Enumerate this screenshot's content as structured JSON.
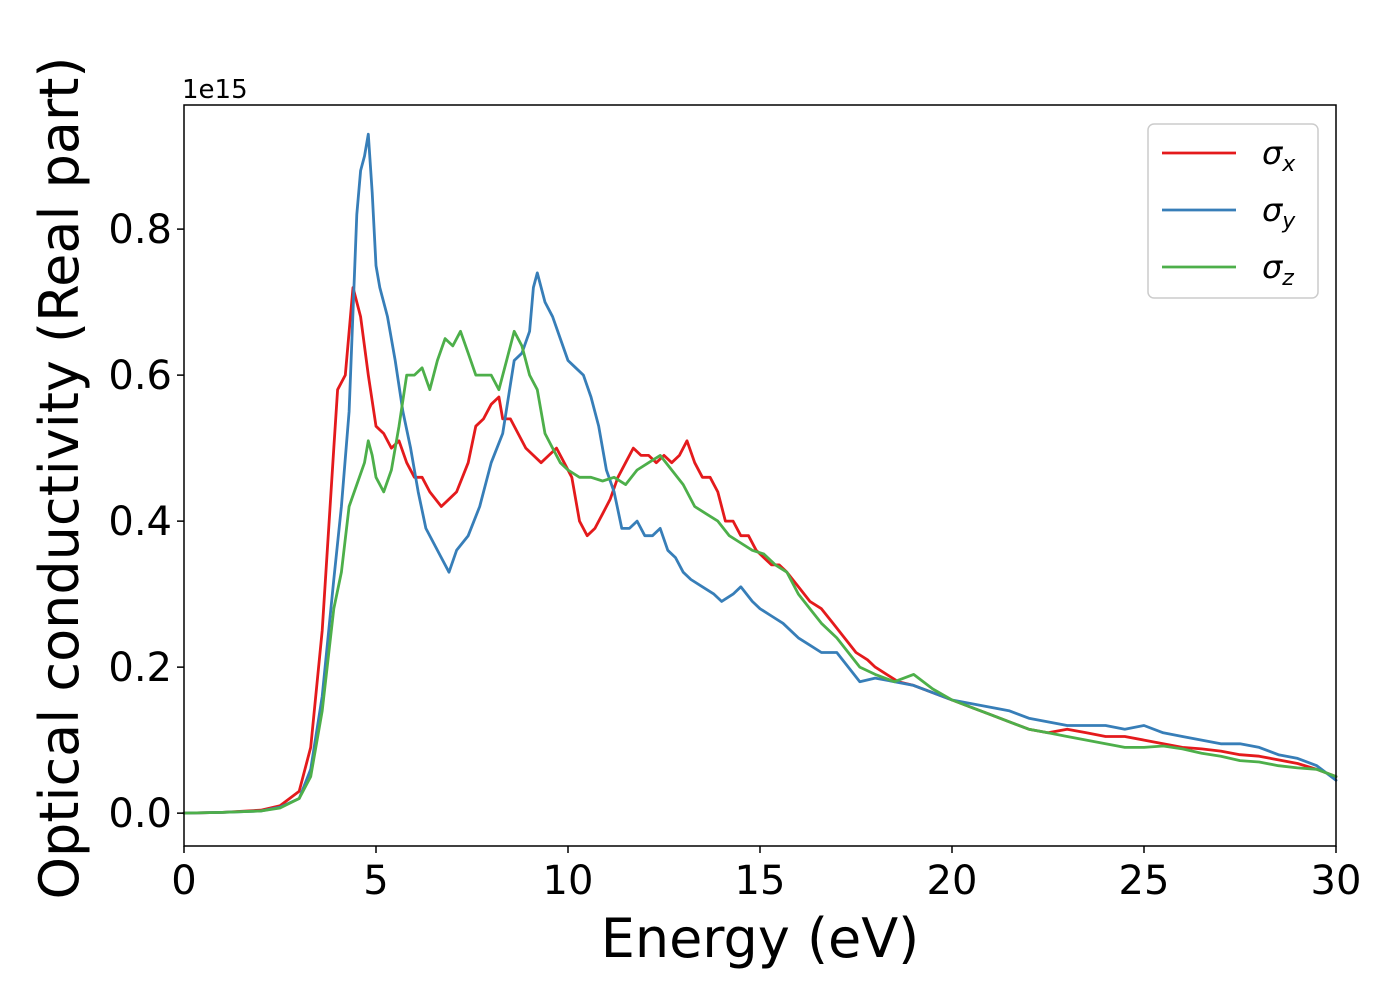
{
  "chart_data": {
    "type": "line",
    "title": "",
    "xlabel": "Energy (eV)",
    "ylabel": "Optical conductivity (Real part)",
    "y_offset_label": "1e15",
    "xlim": [
      0,
      30
    ],
    "ylim": [
      -0.045,
      0.97
    ],
    "x_ticks": [
      0,
      5,
      10,
      15,
      20,
      25,
      30
    ],
    "x_tick_labels": [
      "0",
      "5",
      "10",
      "15",
      "20",
      "25",
      "30"
    ],
    "y_ticks": [
      0.0,
      0.2,
      0.4,
      0.6,
      0.8
    ],
    "y_tick_labels": [
      "0.0",
      "0.2",
      "0.4",
      "0.6",
      "0.8"
    ],
    "grid": false,
    "legend_position": "top-right",
    "series": [
      {
        "name": "σx",
        "symbol": "σ",
        "subscript": "x",
        "color": "#e41a1c",
        "x": [
          0,
          1,
          2,
          2.5,
          3,
          3.3,
          3.6,
          3.9,
          4.0,
          4.2,
          4.4,
          4.5,
          4.6,
          4.8,
          5.0,
          5.2,
          5.4,
          5.6,
          5.8,
          6.0,
          6.2,
          6.4,
          6.7,
          6.9,
          7.1,
          7.4,
          7.6,
          7.8,
          8.0,
          8.2,
          8.3,
          8.5,
          8.7,
          8.9,
          9.1,
          9.3,
          9.5,
          9.7,
          9.9,
          10.1,
          10.3,
          10.5,
          10.7,
          10.9,
          11.1,
          11.3,
          11.5,
          11.7,
          11.9,
          12.1,
          12.3,
          12.5,
          12.7,
          12.9,
          13.1,
          13.3,
          13.5,
          13.7,
          13.9,
          14.1,
          14.3,
          14.5,
          14.7,
          14.9,
          15.1,
          15.3,
          15.5,
          15.7,
          16.0,
          16.3,
          16.6,
          16.9,
          17.2,
          17.5,
          17.8,
          18.0,
          18.3,
          18.6,
          19.0,
          19.5,
          20.0,
          20.5,
          21.0,
          21.5,
          22.0,
          22.5,
          23.0,
          23.5,
          24.0,
          24.5,
          25.0,
          25.5,
          26.0,
          26.5,
          27.0,
          27.5,
          28.0,
          28.5,
          29.0,
          29.5,
          30.0
        ],
        "y": [
          0,
          0.001,
          0.004,
          0.01,
          0.03,
          0.09,
          0.25,
          0.5,
          0.58,
          0.6,
          0.72,
          0.7,
          0.68,
          0.6,
          0.53,
          0.52,
          0.5,
          0.51,
          0.48,
          0.46,
          0.46,
          0.44,
          0.42,
          0.43,
          0.44,
          0.48,
          0.53,
          0.54,
          0.56,
          0.57,
          0.54,
          0.54,
          0.52,
          0.5,
          0.49,
          0.48,
          0.49,
          0.5,
          0.48,
          0.46,
          0.4,
          0.38,
          0.39,
          0.41,
          0.43,
          0.46,
          0.48,
          0.5,
          0.49,
          0.49,
          0.48,
          0.49,
          0.48,
          0.49,
          0.51,
          0.48,
          0.46,
          0.46,
          0.44,
          0.4,
          0.4,
          0.38,
          0.38,
          0.36,
          0.35,
          0.34,
          0.34,
          0.33,
          0.31,
          0.29,
          0.28,
          0.26,
          0.24,
          0.22,
          0.21,
          0.2,
          0.19,
          0.18,
          0.175,
          0.165,
          0.155,
          0.145,
          0.135,
          0.125,
          0.115,
          0.11,
          0.115,
          0.11,
          0.105,
          0.105,
          0.1,
          0.095,
          0.09,
          0.088,
          0.085,
          0.08,
          0.078,
          0.073,
          0.068,
          0.06,
          0.05
        ]
      },
      {
        "name": "σy",
        "symbol": "σ",
        "subscript": "y",
        "color": "#377eb8",
        "x": [
          0,
          1,
          2,
          2.5,
          3,
          3.3,
          3.6,
          3.9,
          4.1,
          4.3,
          4.5,
          4.6,
          4.7,
          4.8,
          4.9,
          5.0,
          5.1,
          5.3,
          5.5,
          5.7,
          5.9,
          6.1,
          6.3,
          6.5,
          6.7,
          6.9,
          7.1,
          7.4,
          7.7,
          8.0,
          8.3,
          8.6,
          8.8,
          9.0,
          9.1,
          9.2,
          9.4,
          9.6,
          9.8,
          10.0,
          10.2,
          10.4,
          10.6,
          10.8,
          11.0,
          11.2,
          11.4,
          11.6,
          11.8,
          12.0,
          12.2,
          12.4,
          12.6,
          12.8,
          13.0,
          13.2,
          13.5,
          13.8,
          14.0,
          14.3,
          14.5,
          14.8,
          15.0,
          15.3,
          15.6,
          16.0,
          16.3,
          16.6,
          17.0,
          17.3,
          17.6,
          18.0,
          18.5,
          19.0,
          19.5,
          20.0,
          20.5,
          21.0,
          21.5,
          22.0,
          22.5,
          23.0,
          23.5,
          24.0,
          24.5,
          25.0,
          25.5,
          26.0,
          26.5,
          27.0,
          27.5,
          28.0,
          28.5,
          29.0,
          29.5,
          30.0
        ],
        "y": [
          0,
          0.001,
          0.003,
          0.008,
          0.02,
          0.06,
          0.16,
          0.32,
          0.42,
          0.55,
          0.82,
          0.88,
          0.9,
          0.93,
          0.85,
          0.75,
          0.72,
          0.68,
          0.62,
          0.55,
          0.5,
          0.44,
          0.39,
          0.37,
          0.35,
          0.33,
          0.36,
          0.38,
          0.42,
          0.48,
          0.52,
          0.62,
          0.63,
          0.66,
          0.72,
          0.74,
          0.7,
          0.68,
          0.65,
          0.62,
          0.61,
          0.6,
          0.57,
          0.53,
          0.47,
          0.44,
          0.39,
          0.39,
          0.4,
          0.38,
          0.38,
          0.39,
          0.36,
          0.35,
          0.33,
          0.32,
          0.31,
          0.3,
          0.29,
          0.3,
          0.31,
          0.29,
          0.28,
          0.27,
          0.26,
          0.24,
          0.23,
          0.22,
          0.22,
          0.2,
          0.18,
          0.185,
          0.18,
          0.175,
          0.165,
          0.155,
          0.15,
          0.145,
          0.14,
          0.13,
          0.125,
          0.12,
          0.12,
          0.12,
          0.115,
          0.12,
          0.11,
          0.105,
          0.1,
          0.095,
          0.095,
          0.09,
          0.08,
          0.075,
          0.065,
          0.045
        ]
      },
      {
        "name": "σz",
        "symbol": "σ",
        "subscript": "z",
        "color": "#4daf4a",
        "x": [
          0,
          1,
          2,
          2.5,
          3,
          3.3,
          3.6,
          3.9,
          4.1,
          4.3,
          4.5,
          4.7,
          4.8,
          4.9,
          5.0,
          5.2,
          5.4,
          5.6,
          5.8,
          6.0,
          6.2,
          6.4,
          6.6,
          6.8,
          7.0,
          7.2,
          7.4,
          7.6,
          7.8,
          8.0,
          8.2,
          8.4,
          8.6,
          8.8,
          9.0,
          9.2,
          9.4,
          9.6,
          9.8,
          10.0,
          10.3,
          10.6,
          10.9,
          11.2,
          11.5,
          11.8,
          12.1,
          12.4,
          12.7,
          13.0,
          13.3,
          13.6,
          13.9,
          14.2,
          14.5,
          14.8,
          15.1,
          15.4,
          15.7,
          16.0,
          16.3,
          16.6,
          17.0,
          17.3,
          17.6,
          18.0,
          18.5,
          19.0,
          19.5,
          20.0,
          20.5,
          21.0,
          21.5,
          22.0,
          22.5,
          23.0,
          23.5,
          24.0,
          24.5,
          25.0,
          25.5,
          26.0,
          26.5,
          27.0,
          27.5,
          28.0,
          28.5,
          29.0,
          29.5,
          30.0
        ],
        "y": [
          0,
          0.001,
          0.003,
          0.007,
          0.02,
          0.05,
          0.14,
          0.28,
          0.33,
          0.42,
          0.45,
          0.48,
          0.51,
          0.49,
          0.46,
          0.44,
          0.47,
          0.53,
          0.6,
          0.6,
          0.61,
          0.58,
          0.62,
          0.65,
          0.64,
          0.66,
          0.63,
          0.6,
          0.6,
          0.6,
          0.58,
          0.62,
          0.66,
          0.64,
          0.6,
          0.58,
          0.52,
          0.5,
          0.48,
          0.47,
          0.46,
          0.46,
          0.455,
          0.46,
          0.45,
          0.47,
          0.48,
          0.49,
          0.47,
          0.45,
          0.42,
          0.41,
          0.4,
          0.38,
          0.37,
          0.36,
          0.355,
          0.34,
          0.33,
          0.3,
          0.28,
          0.26,
          0.24,
          0.22,
          0.2,
          0.19,
          0.18,
          0.19,
          0.17,
          0.155,
          0.145,
          0.135,
          0.125,
          0.115,
          0.11,
          0.105,
          0.1,
          0.095,
          0.09,
          0.09,
          0.092,
          0.088,
          0.082,
          0.078,
          0.072,
          0.07,
          0.065,
          0.062,
          0.06,
          0.05
        ]
      }
    ]
  }
}
